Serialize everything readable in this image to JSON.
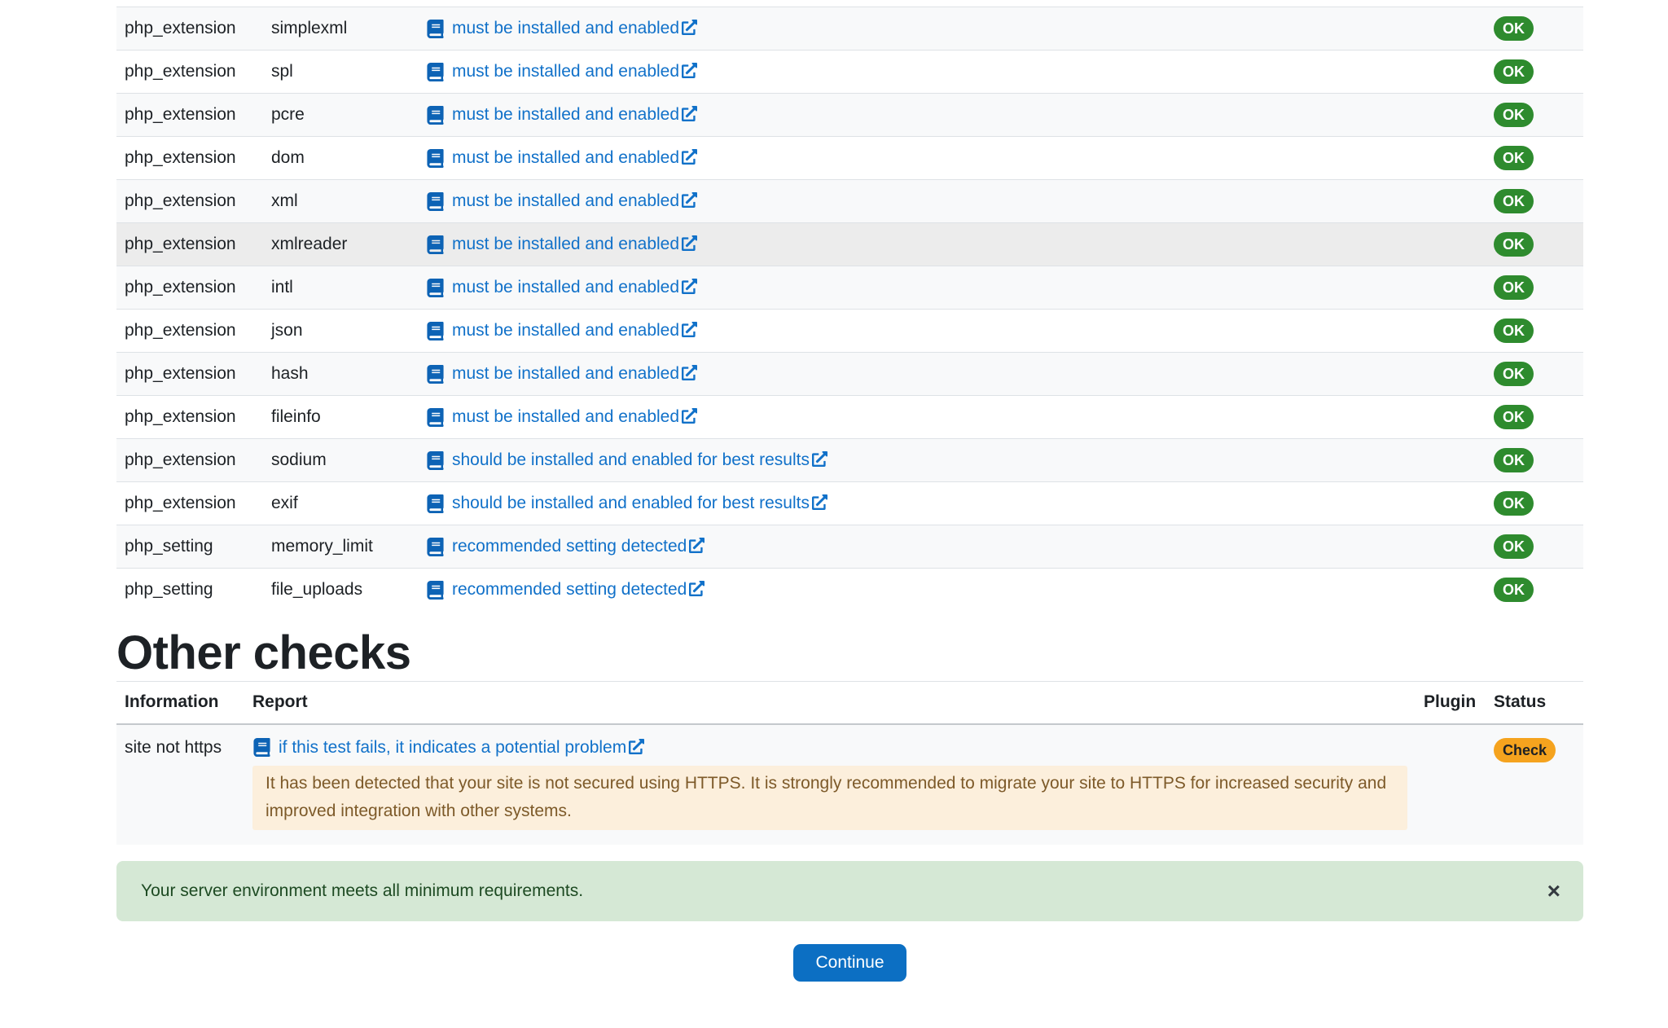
{
  "colors": {
    "link": "#1171c9",
    "book_icon": "#0d63b5",
    "badge_success": "#2e8b2e",
    "badge_warning": "#f5a31e",
    "stripe": "#f8f9fa",
    "hover": "#ececec",
    "warning_box_bg": "#fcefdc",
    "warning_box_text": "#7d5a29",
    "alert_bg": "#d5e8d5",
    "alert_text": "#1d4a22",
    "primary": "#0c6fc3"
  },
  "requirements_table": {
    "rows": [
      {
        "type": "php_extension",
        "name": "simplexml",
        "report": "must be installed and enabled",
        "status": "OK",
        "status_type": "success",
        "hovered": false
      },
      {
        "type": "php_extension",
        "name": "spl",
        "report": "must be installed and enabled",
        "status": "OK",
        "status_type": "success",
        "hovered": false
      },
      {
        "type": "php_extension",
        "name": "pcre",
        "report": "must be installed and enabled",
        "status": "OK",
        "status_type": "success",
        "hovered": false
      },
      {
        "type": "php_extension",
        "name": "dom",
        "report": "must be installed and enabled",
        "status": "OK",
        "status_type": "success",
        "hovered": false
      },
      {
        "type": "php_extension",
        "name": "xml",
        "report": "must be installed and enabled",
        "status": "OK",
        "status_type": "success",
        "hovered": false
      },
      {
        "type": "php_extension",
        "name": "xmlreader",
        "report": "must be installed and enabled",
        "status": "OK",
        "status_type": "success",
        "hovered": true
      },
      {
        "type": "php_extension",
        "name": "intl",
        "report": "must be installed and enabled",
        "status": "OK",
        "status_type": "success",
        "hovered": false
      },
      {
        "type": "php_extension",
        "name": "json",
        "report": "must be installed and enabled",
        "status": "OK",
        "status_type": "success",
        "hovered": false
      },
      {
        "type": "php_extension",
        "name": "hash",
        "report": "must be installed and enabled",
        "status": "OK",
        "status_type": "success",
        "hovered": false
      },
      {
        "type": "php_extension",
        "name": "fileinfo",
        "report": "must be installed and enabled",
        "status": "OK",
        "status_type": "success",
        "hovered": false
      },
      {
        "type": "php_extension",
        "name": "sodium",
        "report": "should be installed and enabled for best results",
        "status": "OK",
        "status_type": "success",
        "hovered": false
      },
      {
        "type": "php_extension",
        "name": "exif",
        "report": "should be installed and enabled for best results",
        "status": "OK",
        "status_type": "success",
        "hovered": false
      },
      {
        "type": "php_setting",
        "name": "memory_limit",
        "report": "recommended setting detected",
        "status": "OK",
        "status_type": "success",
        "hovered": false
      },
      {
        "type": "php_setting",
        "name": "file_uploads",
        "report": "recommended setting detected",
        "status": "OK",
        "status_type": "success",
        "hovered": false
      }
    ]
  },
  "other_checks": {
    "heading": "Other checks",
    "columns": [
      "Information",
      "Report",
      "Plugin",
      "Status"
    ],
    "rows": [
      {
        "information": "site not https",
        "report_link": "if this test fails, it indicates a potential problem",
        "detail": "It has been detected that your site is not secured using HTTPS. It is strongly recommended to migrate your site to HTTPS for increased security and improved integration with other systems.",
        "plugin": "",
        "status": "Check",
        "status_type": "warning"
      }
    ]
  },
  "alert": {
    "message": "Your server environment meets all minimum requirements.",
    "close_label": "×"
  },
  "continue_button": {
    "label": "Continue"
  }
}
